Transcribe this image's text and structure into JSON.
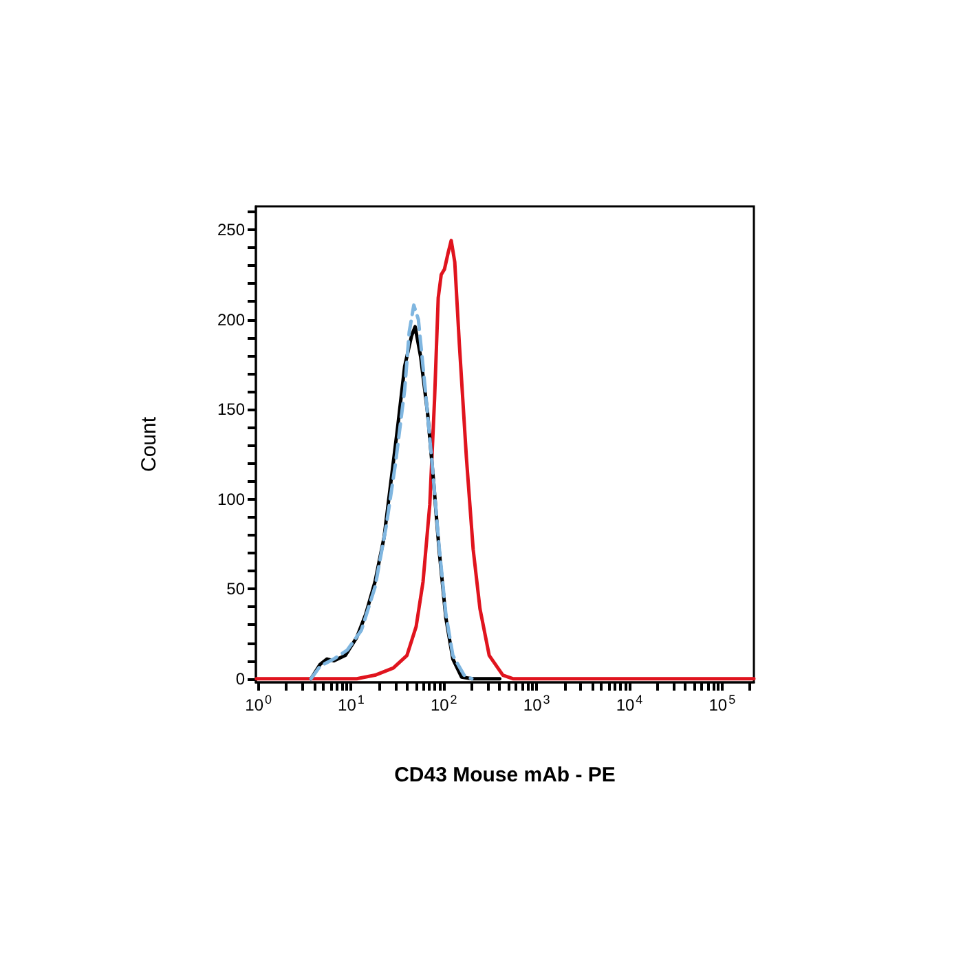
{
  "chart_data": {
    "type": "line",
    "xlabel": "CD43 Mouse mAb - PE",
    "ylabel": "Count",
    "log": "x",
    "grid": false,
    "marker": "none",
    "xlim": [
      0.94,
      220000
    ],
    "ylim": [
      -2,
      263
    ],
    "xticks": [
      {
        "value": 1,
        "label": "10$^{0}$"
      },
      {
        "value": 2,
        "label": null
      },
      {
        "value": 3,
        "label": null
      },
      {
        "value": 4,
        "label": null
      },
      {
        "value": 5,
        "label": null
      },
      {
        "value": 6,
        "label": null
      },
      {
        "value": 7,
        "label": null
      },
      {
        "value": 8,
        "label": null
      },
      {
        "value": 9,
        "label": null
      },
      {
        "value": 10,
        "label": "10$^{1}$"
      },
      {
        "value": 20,
        "label": null
      },
      {
        "value": 30,
        "label": null
      },
      {
        "value": 40,
        "label": null
      },
      {
        "value": 50,
        "label": null
      },
      {
        "value": 60,
        "label": null
      },
      {
        "value": 70,
        "label": null
      },
      {
        "value": 80,
        "label": null
      },
      {
        "value": 90,
        "label": null
      },
      {
        "value": 100,
        "label": "10$^{2}$"
      },
      {
        "value": 200,
        "label": null
      },
      {
        "value": 300,
        "label": null
      },
      {
        "value": 400,
        "label": null
      },
      {
        "value": 500,
        "label": null
      },
      {
        "value": 600,
        "label": null
      },
      {
        "value": 700,
        "label": null
      },
      {
        "value": 800,
        "label": null
      },
      {
        "value": 900,
        "label": null
      },
      {
        "value": 1000,
        "label": "10$^{3}$"
      },
      {
        "value": 2000,
        "label": null
      },
      {
        "value": 3000,
        "label": null
      },
      {
        "value": 4000,
        "label": null
      },
      {
        "value": 5000,
        "label": null
      },
      {
        "value": 6000,
        "label": null
      },
      {
        "value": 7000,
        "label": null
      },
      {
        "value": 8000,
        "label": null
      },
      {
        "value": 9000,
        "label": null
      },
      {
        "value": 10000,
        "label": "10$^{4}$"
      },
      {
        "value": 20000,
        "label": null
      },
      {
        "value": 30000,
        "label": null
      },
      {
        "value": 40000,
        "label": null
      },
      {
        "value": 50000,
        "label": null
      },
      {
        "value": 60000,
        "label": null
      },
      {
        "value": 70000,
        "label": null
      },
      {
        "value": 80000,
        "label": null
      },
      {
        "value": 90000,
        "label": null
      },
      {
        "value": 100000,
        "label": "10$^{5}$"
      },
      {
        "value": 200000,
        "label": null
      }
    ],
    "yticks": [
      0,
      {
        "value": 10,
        "label": null
      },
      {
        "value": 20,
        "label": null
      },
      {
        "value": 30,
        "label": null
      },
      {
        "value": 40,
        "label": null
      },
      50,
      {
        "value": 60,
        "label": null
      },
      {
        "value": 70,
        "label": null
      },
      {
        "value": 80,
        "label": null
      },
      {
        "value": 90,
        "label": null
      },
      100,
      {
        "value": 110,
        "label": null
      },
      {
        "value": 120,
        "label": null
      },
      {
        "value": 130,
        "label": null
      },
      {
        "value": 140,
        "label": null
      },
      150,
      {
        "value": 160,
        "label": null
      },
      {
        "value": 170,
        "label": null
      },
      {
        "value": 180,
        "label": null
      },
      {
        "value": 190,
        "label": null
      },
      200,
      {
        "value": 210,
        "label": null
      },
      {
        "value": 220,
        "label": null
      },
      {
        "value": 230,
        "label": null
      },
      {
        "value": 240,
        "label": null
      },
      250,
      {
        "value": 260,
        "label": null
      }
    ],
    "series": [
      {
        "color": "#e0141e",
        "line_style": "solid",
        "x": [
          0.95,
          11.5,
          18.1,
          28.5,
          40,
          50.2,
          59.6,
          70.5,
          79.4,
          86.9,
          93.6,
          101.5,
          111,
          120,
          131,
          147,
          175,
          207,
          245,
          308,
          433,
          560,
          220000
        ],
        "values": [
          0,
          0,
          2,
          6,
          13,
          29,
          54,
          97,
          156,
          212,
          225,
          228,
          237,
          244,
          232,
          186,
          123,
          72,
          39,
          13,
          2,
          0,
          0
        ]
      },
      {
        "color": "#000000",
        "line_style": "solid",
        "x": [
          3.69,
          4.63,
          5.5,
          6.5,
          8.65,
          11.5,
          14.4,
          18.1,
          22.7,
          26.9,
          31.9,
          37.8,
          44.9,
          49,
          56.3,
          66.7,
          77.4,
          88.7,
          105,
          125,
          155,
          200,
          400
        ],
        "values": [
          0,
          8,
          11,
          10,
          13,
          23,
          36,
          54,
          79,
          110,
          141,
          174,
          191,
          196,
          179,
          148,
          110,
          72,
          34,
          11,
          1,
          0,
          0
        ]
      },
      {
        "color": "#7fb6e0",
        "line_style": "dashed",
        "x": [
          3.69,
          4.63,
          6.5,
          9.1,
          12.9,
          18.1,
          23.9,
          30.1,
          37.8,
          42.3,
          47.4,
          53.1,
          63,
          74.6,
          88.7,
          105,
          125,
          165,
          200
        ],
        "values": [
          0,
          7,
          11,
          16,
          27,
          51,
          85,
          120,
          161,
          193,
          208,
          200,
          161,
          120,
          74,
          36,
          13,
          2,
          0
        ]
      }
    ]
  }
}
